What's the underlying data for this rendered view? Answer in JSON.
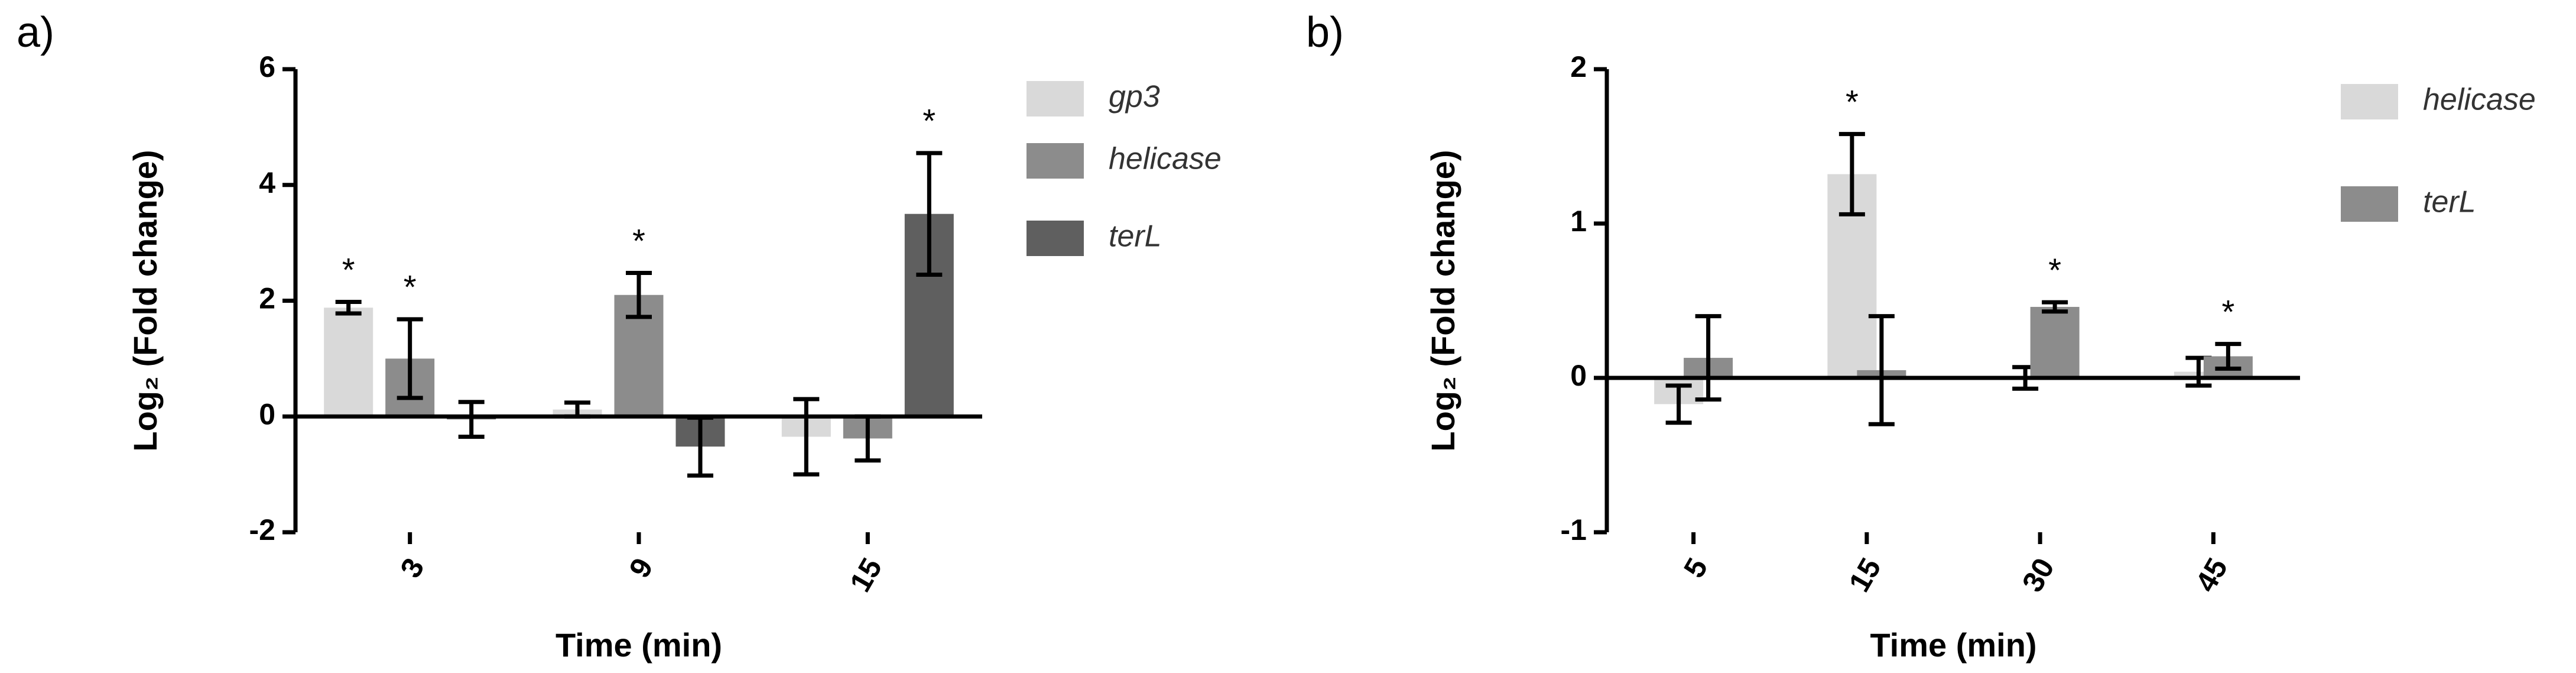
{
  "chart_data": [
    {
      "type": "bar",
      "panel": "a)",
      "ylabel": "Log₂ (Fold change)",
      "xlabel": "Time (min)",
      "categories": [
        "3",
        "9",
        "15"
      ],
      "ylim": [
        -2,
        6
      ],
      "yticks": [
        -2,
        0,
        2,
        4,
        6
      ],
      "series": [
        {
          "name": "gp3",
          "color": "#d9d9d9",
          "values": [
            1.88,
            0.12,
            -0.35
          ],
          "errors": [
            0.1,
            0.12,
            0.65
          ],
          "labels": [
            "*",
            null,
            null
          ]
        },
        {
          "name": "helicase",
          "color": "#8c8c8c",
          "values": [
            1.0,
            2.1,
            -0.38
          ],
          "errors": [
            0.68,
            0.38,
            0.38
          ],
          "labels": [
            "*",
            "*",
            null
          ]
        },
        {
          "name": "terL",
          "color": "#5f5f5f",
          "values": [
            -0.05,
            -0.52,
            3.5
          ],
          "errors": [
            0.3,
            0.5,
            1.05
          ],
          "labels": [
            null,
            null,
            "*"
          ]
        }
      ]
    },
    {
      "type": "bar",
      "panel": "b)",
      "ylabel": "Log₂ (Fold change)",
      "xlabel": "Time (min)",
      "categories": [
        "5",
        "15",
        "30",
        "45"
      ],
      "ylim": [
        -1,
        2
      ],
      "yticks": [
        -1,
        0,
        1,
        2
      ],
      "series": [
        {
          "name": "helicase",
          "color": "#d9d9d9",
          "values": [
            -0.17,
            1.32,
            0.0,
            0.04
          ],
          "errors": [
            0.12,
            0.26,
            0.07,
            0.09
          ],
          "labels": [
            null,
            "*",
            null,
            null
          ]
        },
        {
          "name": "terL",
          "color": "#8c8c8c",
          "values": [
            0.13,
            0.05,
            0.46,
            0.14
          ],
          "errors": [
            0.27,
            0.35,
            0.03,
            0.08
          ],
          "labels": [
            null,
            null,
            "*",
            "*"
          ]
        }
      ]
    }
  ]
}
